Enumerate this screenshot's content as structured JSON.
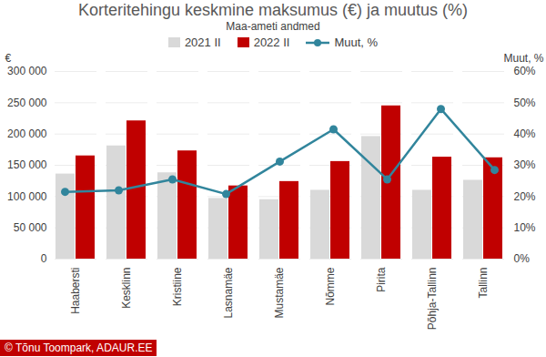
{
  "chart_data": {
    "type": "bar",
    "title": "Korteritehingu keskmine maksumus (€) ja muutus (%)",
    "subtitle": "Maa-ameti andmed",
    "caption": "© Tõnu Toompark, ADAUR.EE",
    "y_label": "€",
    "y2_label": "Muut, %",
    "categories": [
      "Haabersti",
      "Kesklinn",
      "Kristiine",
      "Lasnamäe",
      "Mustamäe",
      "Nõmme",
      "Pirita",
      "Põhja-Tallinn",
      "Tallinn"
    ],
    "series": [
      {
        "name": "2021 II",
        "color": "#d9d9d9",
        "values": [
          136000,
          181000,
          138000,
          97000,
          95000,
          110000,
          196000,
          110000,
          126000
        ]
      },
      {
        "name": "2022 II",
        "color": "#c00000",
        "values": [
          165000,
          221000,
          173000,
          117000,
          124000,
          156000,
          245000,
          163000,
          162000
        ]
      },
      {
        "name": "Muut, %",
        "type": "line",
        "axis": "y2",
        "color": "#31859c",
        "marker": "circle",
        "values": [
          21.5,
          22,
          25.5,
          20.8,
          31.2,
          41.5,
          25.5,
          48,
          28.5
        ]
      }
    ],
    "ylim": [
      0,
      300000
    ],
    "yticks": [
      0,
      {
        "value": 50000,
        "label": "50 000"
      },
      {
        "value": 100000,
        "label": "100 000"
      },
      {
        "value": 150000,
        "label": "150 000"
      },
      {
        "value": 200000,
        "label": "200 000"
      },
      {
        "value": 250000,
        "label": "250 000"
      },
      {
        "value": 300000,
        "label": "300 000"
      }
    ],
    "y2lim": [
      0,
      60
    ],
    "y2ticks": [
      {
        "value": 0,
        "label": "0%"
      },
      {
        "value": 10,
        "label": "10%"
      },
      {
        "value": 20,
        "label": "20%"
      },
      {
        "value": 30,
        "label": "30%"
      },
      {
        "value": 40,
        "label": "40%"
      },
      {
        "value": 50,
        "label": "50%"
      },
      {
        "value": 60,
        "label": "60%"
      }
    ],
    "grid": true
  }
}
